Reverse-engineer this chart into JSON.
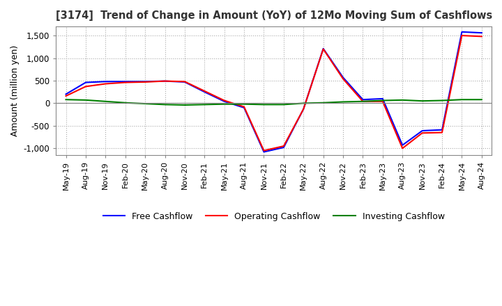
{
  "title": "[3174]  Trend of Change in Amount (YoY) of 12Mo Moving Sum of Cashflows",
  "ylabel": "Amount (million yen)",
  "ylim": [
    -1150,
    1700
  ],
  "yticks": [
    -1000,
    -500,
    0,
    500,
    1000,
    1500
  ],
  "background_color": "#ffffff",
  "grid_color": "#aaaaaa",
  "x_labels": [
    "May-19",
    "Aug-19",
    "Nov-19",
    "Feb-20",
    "May-20",
    "Aug-20",
    "Nov-20",
    "Feb-21",
    "May-21",
    "Aug-21",
    "Nov-21",
    "Feb-22",
    "May-22",
    "Aug-22",
    "Nov-22",
    "Feb-23",
    "May-23",
    "Aug-23",
    "Nov-23",
    "Feb-24",
    "May-24",
    "Aug-24"
  ],
  "operating": [
    160,
    370,
    430,
    460,
    470,
    490,
    480,
    270,
    60,
    -80,
    -1050,
    -950,
    -130,
    1200,
    540,
    40,
    40,
    -1000,
    -660,
    -650,
    1500,
    1480
  ],
  "investing": [
    80,
    70,
    40,
    10,
    -10,
    -30,
    -40,
    -30,
    -20,
    -20,
    -30,
    -30,
    0,
    10,
    30,
    40,
    60,
    70,
    50,
    60,
    80,
    80
  ],
  "free": [
    200,
    460,
    480,
    480,
    480,
    490,
    470,
    250,
    40,
    -100,
    -1080,
    -980,
    -130,
    1210,
    570,
    80,
    100,
    -930,
    -610,
    -590,
    1580,
    1560
  ],
  "op_color": "#ff0000",
  "inv_color": "#008000",
  "free_color": "#0000ff",
  "line_width": 1.5
}
